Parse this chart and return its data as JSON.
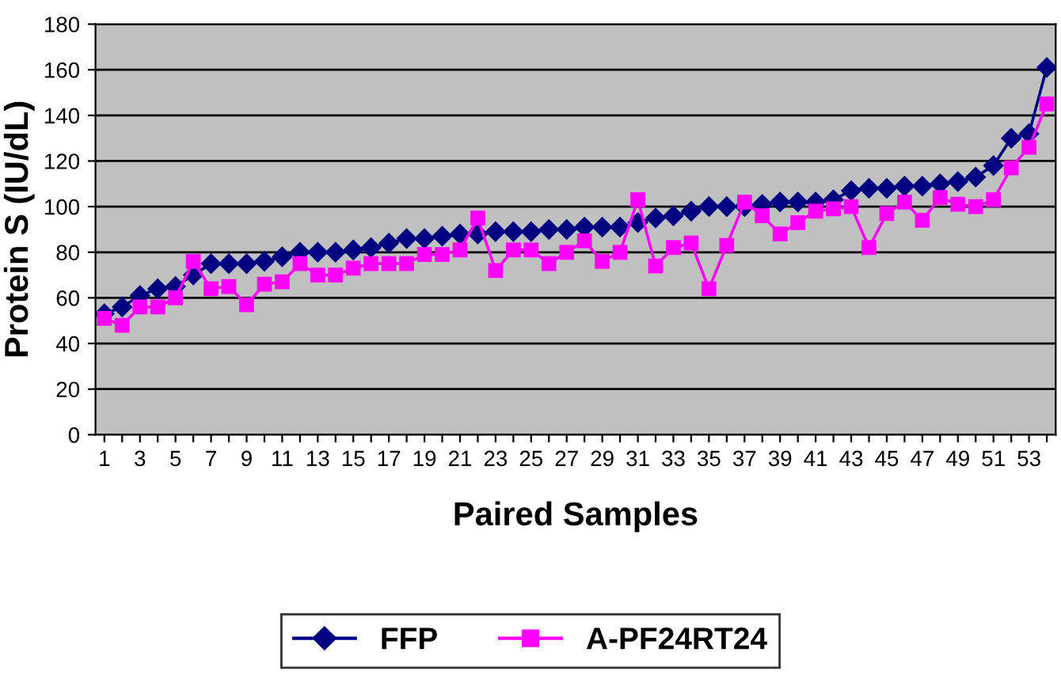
{
  "chart_data": {
    "type": "line",
    "xlabel": "Paired Samples",
    "ylabel": "Protein S (IU/dL)",
    "categories": [
      "1",
      null,
      "3",
      null,
      "5",
      null,
      "7",
      null,
      "9",
      null,
      "11",
      null,
      "13",
      null,
      "15",
      null,
      "17",
      null,
      "19",
      null,
      "21",
      null,
      "23",
      null,
      "25",
      null,
      "27",
      null,
      "29",
      null,
      "31",
      null,
      "33",
      null,
      "35",
      null,
      "37",
      null,
      "39",
      null,
      "41",
      null,
      "43",
      null,
      "45",
      null,
      "47",
      null,
      "49",
      null,
      "51",
      null,
      "53",
      null
    ],
    "series": [
      {
        "name": "FFP",
        "color": "#000080",
        "marker": "diamond",
        "values": [
          53,
          56,
          61,
          64,
          65,
          70,
          75,
          75,
          75,
          76,
          78,
          80,
          80,
          80,
          81,
          82,
          84,
          86,
          86,
          87,
          88,
          88,
          89,
          89,
          89,
          90,
          90,
          91,
          91,
          91,
          93,
          95,
          96,
          98,
          100,
          100,
          100,
          101,
          102,
          102,
          102,
          103,
          107,
          108,
          108,
          109,
          109,
          110,
          111,
          113,
          118,
          130,
          132,
          161
        ]
      },
      {
        "name": "A-PF24RT24",
        "color": "#ff00ff",
        "marker": "square",
        "values": [
          51,
          48,
          56,
          56,
          60,
          76,
          64,
          65,
          57,
          66,
          67,
          75,
          70,
          70,
          73,
          75,
          75,
          75,
          79,
          79,
          81,
          95,
          72,
          81,
          81,
          75,
          80,
          85,
          76,
          80,
          103,
          74,
          82,
          84,
          64,
          83,
          102,
          96,
          88,
          93,
          98,
          99,
          100,
          82,
          97,
          102,
          94,
          104,
          101,
          100,
          103,
          117,
          126,
          145
        ]
      }
    ],
    "ylim": [
      0,
      180
    ],
    "yticks": [
      0,
      20,
      40,
      60,
      80,
      100,
      120,
      140,
      160,
      180
    ],
    "grid": "y",
    "legend": "bottom",
    "line_style": "solid"
  }
}
